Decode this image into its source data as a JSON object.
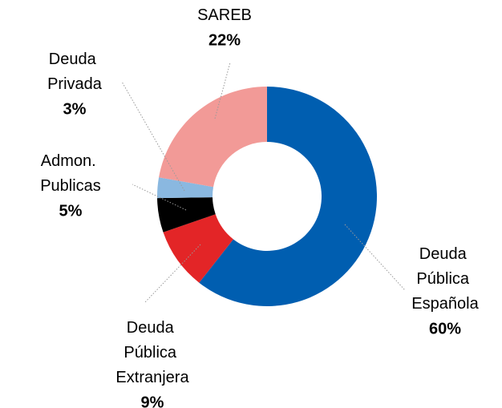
{
  "chart_data": {
    "type": "donut",
    "categories": [
      "Deuda Pública Española",
      "Deuda Pública Extranjera",
      "Admon. Publicas",
      "Deuda Privada",
      "SAREB"
    ],
    "values": [
      60,
      9,
      5,
      3,
      22
    ],
    "value_labels": [
      "60%",
      "9%",
      "5%",
      "3%",
      "22%"
    ],
    "colors": [
      "#005eb0",
      "#e32527",
      "#000000",
      "#8ab8e0",
      "#f29a97"
    ]
  }
}
